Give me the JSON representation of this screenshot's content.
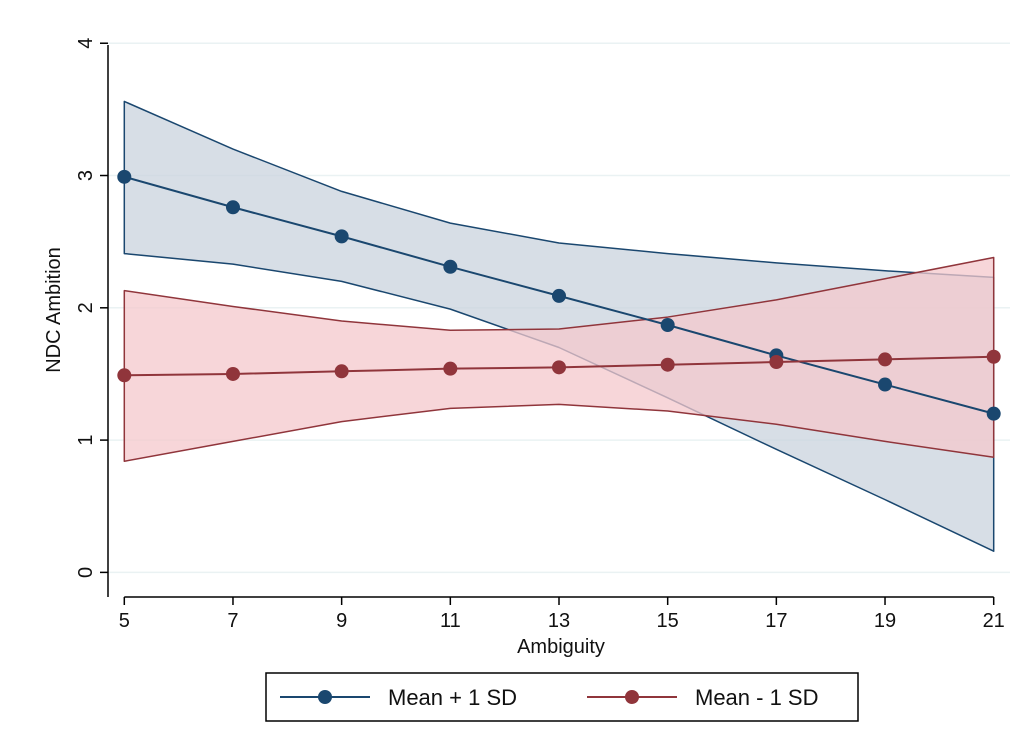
{
  "chart_data": {
    "type": "line",
    "title": "",
    "xlabel": "Ambiguity",
    "ylabel": "NDC Ambition",
    "x": [
      5,
      7,
      9,
      11,
      13,
      15,
      17,
      19,
      21
    ],
    "x_ticks": [
      "5",
      "7",
      "9",
      "11",
      "13",
      "15",
      "17",
      "19",
      "21"
    ],
    "y_ticks": [
      "0",
      "1",
      "2",
      "3",
      "4"
    ],
    "xlim": [
      4.7,
      21.3
    ],
    "ylim": [
      -0.05,
      4.1
    ],
    "grid": "horizontal",
    "legend_position": "bottom",
    "series": [
      {
        "name": "Mean + 1 SD",
        "color": "#1a476f",
        "band_color": "#c9d3dd",
        "values": [
          2.99,
          2.76,
          2.54,
          2.31,
          2.09,
          1.87,
          1.64,
          1.42,
          1.2
        ],
        "ci_lower": [
          2.41,
          2.33,
          2.2,
          1.99,
          1.7,
          1.32,
          0.93,
          0.55,
          0.16
        ],
        "ci_upper": [
          3.56,
          3.2,
          2.88,
          2.64,
          2.49,
          2.41,
          2.34,
          2.28,
          2.23
        ]
      },
      {
        "name": "Mean - 1 SD",
        "color": "#90353b",
        "band_color": "#f4c8cc",
        "values": [
          1.49,
          1.5,
          1.52,
          1.54,
          1.55,
          1.57,
          1.59,
          1.61,
          1.63
        ],
        "ci_lower": [
          0.84,
          0.99,
          1.14,
          1.24,
          1.27,
          1.22,
          1.12,
          0.99,
          0.87
        ],
        "ci_upper": [
          2.13,
          2.01,
          1.9,
          1.83,
          1.84,
          1.93,
          2.06,
          2.22,
          2.38
        ]
      }
    ]
  }
}
